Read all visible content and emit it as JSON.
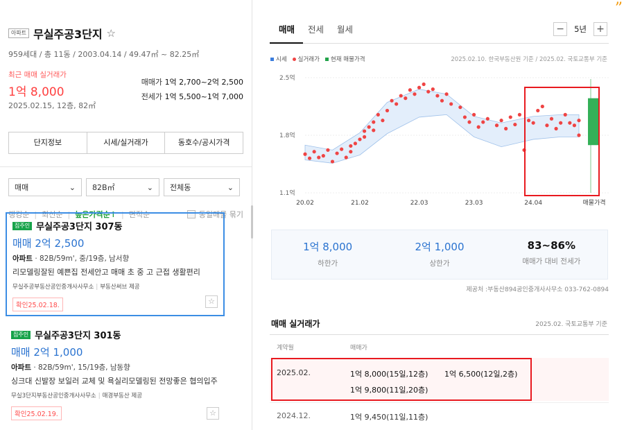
{
  "complex": {
    "type_badge": "아파트",
    "name": "무실주공3단지",
    "star": "☆",
    "meta": "959세대 / 총 11동 / 2003.04.14 / 49.47㎡ ~ 82.25㎡",
    "recent_label": "최근 매매 실거래가",
    "recent_price": "1억 8,000",
    "recent_date": "2025.02.15, 12층, 82㎡",
    "sale_range_label": "매매가",
    "sale_range": "1억 2,700~2억 2,500",
    "jeonse_range_label": "전세가",
    "jeonse_range": "1억 5,500~1억 7,000"
  },
  "info_tabs": [
    "단지정보",
    "시세/실거래가",
    "동호수/공시가격"
  ],
  "filters": [
    {
      "value": "매매"
    },
    {
      "value": "82B㎡"
    },
    {
      "value": "전체동"
    }
  ],
  "sort": {
    "items": [
      "랭킹순",
      "최신순",
      "높은가격순↑",
      "면적순"
    ],
    "active_index": 2,
    "same_listing_label": "동일매물 묶기"
  },
  "listings": [
    {
      "badge": "집주인",
      "name": "무실주공3단지 307동",
      "price": "매매 2억 2,500",
      "spec_bold": "아파트",
      "spec": " · 82B/59m', 중/19층, 남서향",
      "desc": "리모델링잘된 예쁜집 전세안고 매매 초 중 고 근접 생활편리",
      "agent": "무실주공부동산공인중개사사무소",
      "agent_provider": "부동산써브 제공",
      "confirm": "확인25.02.18."
    },
    {
      "badge": "집주인",
      "name": "무실주공3단지 301동",
      "price": "매매 2억 1,000",
      "spec_bold": "아파트",
      "spec": " · 82B/59m', 15/19층, 남동향",
      "desc": "싱크대 신발장 보일러 교체 및 욕실리모델링된 전망좋은 협의입주 ···",
      "agent": "무실3단지부동산공인중개사사무소",
      "agent_provider": "매경부동산 제공",
      "confirm": "확인25.02.19."
    }
  ],
  "right_tabs": [
    "매매",
    "전세",
    "월세"
  ],
  "period": {
    "minus": "−",
    "value": "5년",
    "plus": "+"
  },
  "legend": {
    "items": [
      {
        "label": "시세",
        "color": "#3b7ddd"
      },
      {
        "label": "실거래가",
        "color": "#ef4444"
      },
      {
        "label": "현재 매물가격",
        "color": "#22a34a"
      }
    ],
    "source": "2025.02.10. 한국부동산원 기준 / 2025.02. 국토교통부 기준"
  },
  "chart_data": {
    "type": "scatter",
    "title": "",
    "y_ticks": [
      "2.5억",
      "1.8억",
      "1.1억"
    ],
    "y_tick_values": [
      2.5,
      1.8,
      1.1
    ],
    "x_ticks": [
      "20.02",
      "21.02",
      "22.03",
      "23.03",
      "24.04",
      "매물가격"
    ],
    "ylim": [
      1.1,
      2.5
    ],
    "grid": true,
    "listing_price_range": {
      "low": 1.68,
      "high": 2.25
    },
    "price_band": {
      "x": [
        "20.02",
        "20.08",
        "21.02",
        "21.08",
        "22.03",
        "22.09",
        "23.03",
        "23.09",
        "24.04",
        "24.10",
        "25.02"
      ],
      "lower": [
        1.5,
        1.46,
        1.56,
        1.82,
        2.02,
        2.05,
        1.78,
        1.66,
        1.75,
        1.78,
        1.78
      ],
      "upper": [
        1.68,
        1.62,
        1.83,
        2.2,
        2.36,
        2.3,
        2.03,
        1.95,
        2.03,
        2.05,
        2.05
      ]
    },
    "series": [
      {
        "name": "실거래가",
        "points": [
          [
            "20.02",
            1.57
          ],
          [
            "20.03",
            1.52
          ],
          [
            "20.04",
            1.6
          ],
          [
            "20.05",
            1.53
          ],
          [
            "20.06",
            1.55
          ],
          [
            "20.07",
            1.62
          ],
          [
            "20.08",
            1.48
          ],
          [
            "20.09",
            1.58
          ],
          [
            "20.10",
            1.63
          ],
          [
            "20.11",
            1.53
          ],
          [
            "20.12",
            1.6
          ],
          [
            "20.12",
            1.67
          ],
          [
            "21.01",
            1.7
          ],
          [
            "21.02",
            1.75
          ],
          [
            "21.03",
            1.85
          ],
          [
            "21.03",
            1.78
          ],
          [
            "21.04",
            1.9
          ],
          [
            "21.05",
            1.96
          ],
          [
            "21.05",
            1.86
          ],
          [
            "21.06",
            2.05
          ],
          [
            "21.07",
            1.98
          ],
          [
            "21.08",
            2.1
          ],
          [
            "21.09",
            2.22
          ],
          [
            "21.10",
            2.18
          ],
          [
            "21.11",
            2.28
          ],
          [
            "21.12",
            2.25
          ],
          [
            "22.01",
            2.35
          ],
          [
            "22.02",
            2.3
          ],
          [
            "22.03",
            2.38
          ],
          [
            "22.04",
            2.42
          ],
          [
            "22.05",
            2.33
          ],
          [
            "22.06",
            2.36
          ],
          [
            "22.07",
            2.28
          ],
          [
            "22.08",
            2.22
          ],
          [
            "22.09",
            2.3
          ],
          [
            "22.10",
            2.18
          ],
          [
            "22.12",
            2.14
          ],
          [
            "23.01",
            2.02
          ],
          [
            "23.02",
            1.96
          ],
          [
            "23.03",
            2.05
          ],
          [
            "23.04",
            1.9
          ],
          [
            "23.05",
            1.96
          ],
          [
            "23.06",
            2.0
          ],
          [
            "23.08",
            1.92
          ],
          [
            "23.09",
            1.98
          ],
          [
            "23.10",
            1.88
          ],
          [
            "23.11",
            2.02
          ],
          [
            "23.12",
            1.93
          ],
          [
            "24.01",
            2.05
          ],
          [
            "24.02",
            1.62
          ],
          [
            "24.03",
            1.98
          ],
          [
            "24.04",
            1.95
          ],
          [
            "24.05",
            2.1
          ],
          [
            "24.06",
            2.15
          ],
          [
            "24.07",
            1.92
          ],
          [
            "24.08",
            2.0
          ],
          [
            "24.09",
            1.88
          ],
          [
            "24.10",
            1.95
          ],
          [
            "24.11",
            2.05
          ],
          [
            "24.12",
            1.95
          ],
          [
            "25.01",
            1.92
          ],
          [
            "25.02",
            1.8
          ],
          [
            "25.02",
            1.98
          ]
        ]
      }
    ]
  },
  "summary": [
    {
      "value": "1억 8,000",
      "label": "하한가"
    },
    {
      "value": "2억 1,000",
      "label": "상한가"
    },
    {
      "value": "83~86%",
      "label": "매매가 대비 전세가"
    }
  ],
  "provider_note": "제공처 :부동산894공인중개사사무소 033-762-0894",
  "transactions": {
    "title": "매매 실거래가",
    "source": "2025.02. 국토교통부 기준",
    "col_month": "계약월",
    "col_price": "매매가",
    "rows": [
      {
        "month": "2025.02.",
        "prices": [
          "1억 8,000(15일,12층)",
          "1억 6,500(12일,2층)",
          "1억 9,800(11일,20층)"
        ]
      },
      {
        "month": "2024.12.",
        "prices": [
          "1억 9,450(11일,11층)"
        ]
      }
    ]
  }
}
